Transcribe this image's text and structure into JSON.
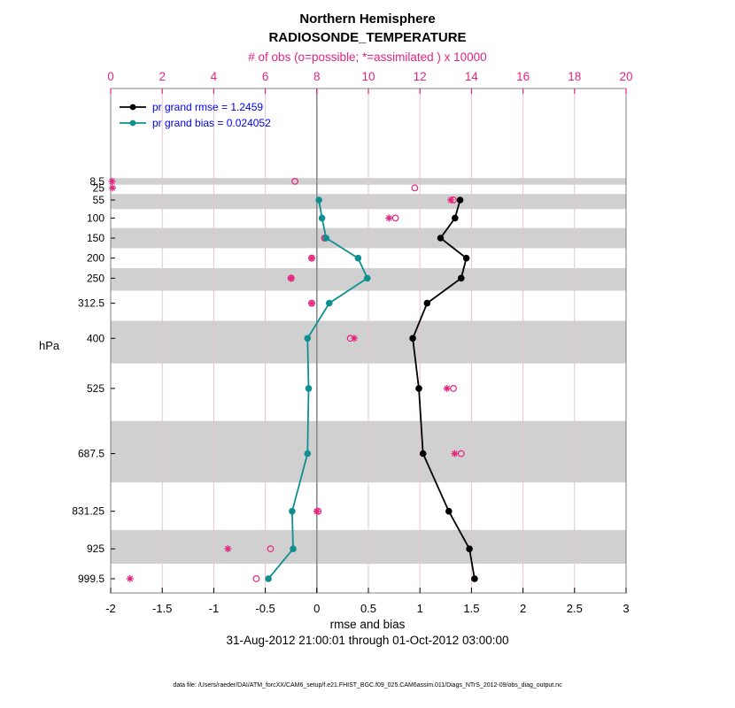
{
  "chart_data": {
    "type": "line",
    "title": "Northern Hemisphere",
    "subtitle": "RADIOSONDE_TEMPERATURE",
    "top_xlabel": "# of obs (o=possible; *=assimilated ) x 10000",
    "bottom_xlabel": "rmse and bias",
    "date_range": "31-Aug-2012 21:00:01 through 01-Oct-2012 03:00:00",
    "ylabel": "hPa",
    "colors": {
      "rmse": "#000000",
      "bias": "#0f8f8f",
      "obs": "#e5247e",
      "band": "#d0d0d0",
      "grid": "#e6c3d2",
      "zero_line": "#8c8c8c",
      "axis_box": "#808080",
      "legend_text": "#0000ee"
    },
    "bottom_axis": {
      "min": -2,
      "max": 3,
      "ticks": [
        -2,
        -1.5,
        -1,
        -0.5,
        0,
        0.5,
        1,
        1.5,
        2,
        2.5,
        3
      ],
      "color": "#000000"
    },
    "top_axis": {
      "min": 0,
      "max": 20,
      "ticks": [
        0,
        2,
        4,
        6,
        8,
        10,
        12,
        14,
        16,
        18,
        20
      ],
      "color": "#e5247e"
    },
    "y_axis": {
      "min": -223,
      "max": 1035,
      "reversed": true,
      "unit": "hPa",
      "levels": [
        8.5,
        25,
        55,
        100,
        150,
        200,
        250,
        312.5,
        400,
        525,
        687.5,
        831.25,
        925,
        999.5
      ]
    },
    "shaded_bands_hpa": [
      [
        0.25,
        16.75
      ],
      [
        40,
        77.5
      ],
      [
        125,
        175
      ],
      [
        225,
        281.25
      ],
      [
        356.25,
        462.5
      ],
      [
        606.25,
        759.375
      ],
      [
        878.125,
        962.25
      ]
    ],
    "series": [
      {
        "name": "pr grand rmse = 1.2459",
        "color": "#000000",
        "marker": "dot",
        "axis": "bottom",
        "points": [
          {
            "p": 55,
            "x": 1.39
          },
          {
            "p": 100,
            "x": 1.34
          },
          {
            "p": 150,
            "x": 1.2
          },
          {
            "p": 200,
            "x": 1.45
          },
          {
            "p": 250,
            "x": 1.4
          },
          {
            "p": 312.5,
            "x": 1.07
          },
          {
            "p": 400,
            "x": 0.93
          },
          {
            "p": 525,
            "x": 0.99
          },
          {
            "p": 687.5,
            "x": 1.03
          },
          {
            "p": 831.25,
            "x": 1.28
          },
          {
            "p": 925,
            "x": 1.48
          },
          {
            "p": 999.5,
            "x": 1.53
          }
        ]
      },
      {
        "name": "pr grand bias = 0.024052",
        "color": "#0f8f8f",
        "marker": "dot",
        "axis": "bottom",
        "points": [
          {
            "p": 55,
            "x": 0.02
          },
          {
            "p": 100,
            "x": 0.05
          },
          {
            "p": 150,
            "x": 0.09
          },
          {
            "p": 200,
            "x": 0.4
          },
          {
            "p": 250,
            "x": 0.49
          },
          {
            "p": 312.5,
            "x": 0.12
          },
          {
            "p": 400,
            "x": -0.09
          },
          {
            "p": 525,
            "x": -0.08
          },
          {
            "p": 687.5,
            "x": -0.09
          },
          {
            "p": 831.25,
            "x": -0.24
          },
          {
            "p": 925,
            "x": -0.23
          },
          {
            "p": 999.5,
            "x": -0.47
          }
        ]
      }
    ],
    "obs_markers": {
      "color": "#e5247e",
      "possible": [
        {
          "p": 8.5,
          "n": 7.15
        },
        {
          "p": 25,
          "n": 11.8
        },
        {
          "p": 55,
          "n": 13.3
        },
        {
          "p": 100,
          "n": 11.05
        },
        {
          "p": 150,
          "n": 8.3
        },
        {
          "p": 200,
          "n": 7.8
        },
        {
          "p": 250,
          "n": 7.0
        },
        {
          "p": 312.5,
          "n": 7.8
        },
        {
          "p": 400,
          "n": 9.3
        },
        {
          "p": 525,
          "n": 13.3
        },
        {
          "p": 687.5,
          "n": 13.6
        },
        {
          "p": 831.25,
          "n": 8.05
        },
        {
          "p": 925,
          "n": 6.2
        },
        {
          "p": 999.5,
          "n": 5.65
        }
      ],
      "assimilated": [
        {
          "p": 8.5,
          "n": 0.05
        },
        {
          "p": 25,
          "n": 0.07
        },
        {
          "p": 55,
          "n": 13.2
        },
        {
          "p": 100,
          "n": 10.8
        },
        {
          "p": 150,
          "n": 8.3
        },
        {
          "p": 200,
          "n": 7.8
        },
        {
          "p": 250,
          "n": 7.0
        },
        {
          "p": 312.5,
          "n": 7.8
        },
        {
          "p": 400,
          "n": 9.45
        },
        {
          "p": 525,
          "n": 13.05
        },
        {
          "p": 687.5,
          "n": 13.35
        },
        {
          "p": 831.25,
          "n": 8.0
        },
        {
          "p": 925,
          "n": 4.55
        },
        {
          "p": 999.5,
          "n": 0.75
        }
      ]
    },
    "zero_line_x": 0
  },
  "footer": {
    "data_file": "data file: /Users/raeder/DAI/ATM_forcXX/CAM6_setup/f.e21.FHIST_BGC.f09_025.CAM6assim.011/Diags_NTrS_2012-09/obs_diag_output.nc"
  }
}
